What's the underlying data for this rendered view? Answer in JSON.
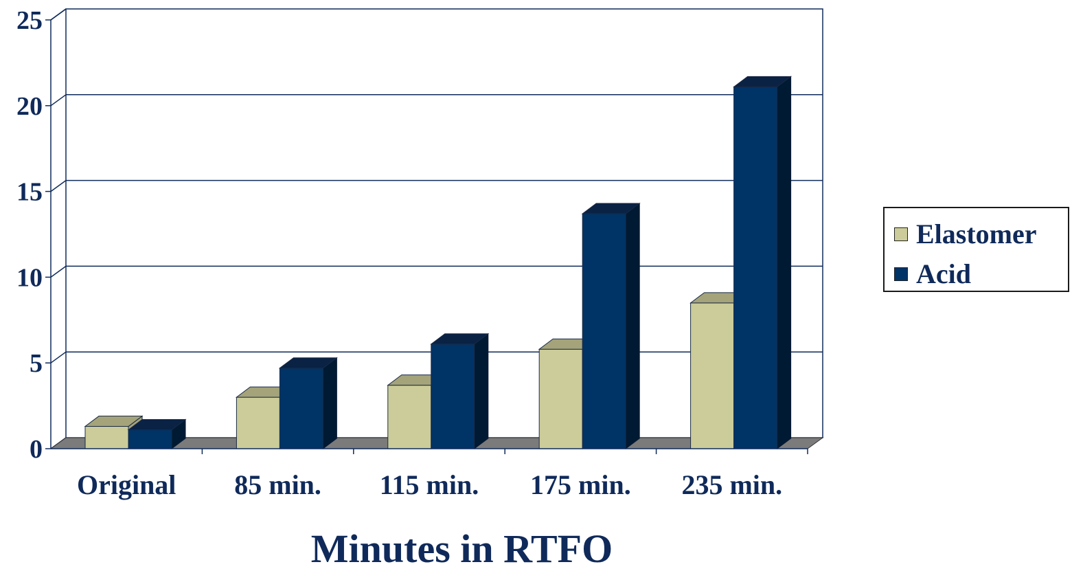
{
  "chart_data": {
    "type": "bar",
    "title": "",
    "xlabel": "Minutes in RTFO",
    "ylabel": "",
    "categories": [
      "Original",
      "85 min.",
      "115 min.",
      "175 min.",
      "235 min."
    ],
    "series": [
      {
        "name": "Elastomer",
        "values": [
          1.3,
          3.0,
          3.7,
          5.8,
          8.5
        ],
        "color": "#cccc9a",
        "top_color": "#a4a37a"
      },
      {
        "name": "Acid",
        "values": [
          1.1,
          4.7,
          6.1,
          13.7,
          21.1
        ],
        "color": "#003366",
        "top_color": "#0a2244",
        "side_color": "#001a33"
      }
    ],
    "ylim": [
      0,
      25
    ],
    "yticks": [
      "0",
      "5",
      "10",
      "15",
      "20",
      "25"
    ],
    "grid": true,
    "legend_position": "right",
    "style": "3d-clustered"
  },
  "legend": {
    "items": [
      {
        "label": "Elastomer",
        "color": "#cccc9a"
      },
      {
        "label": "Acid",
        "color": "#003366"
      }
    ]
  },
  "axis_title": "Minutes in RTFO"
}
